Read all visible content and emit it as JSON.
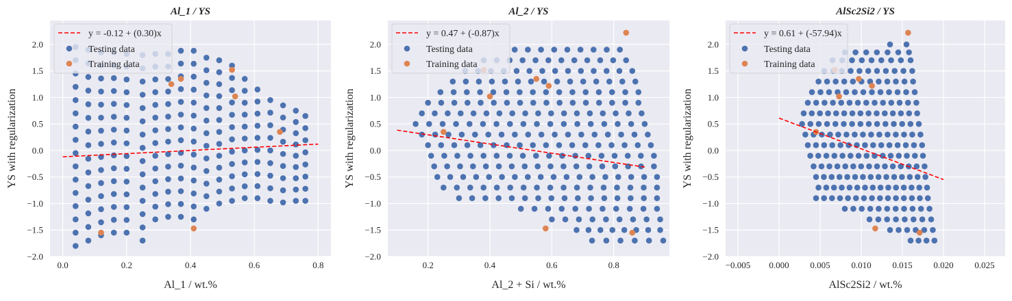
{
  "colors": {
    "axes_bg": "#EAEAF2",
    "grid": "#FFFFFF",
    "testing": "#4C72B0",
    "training": "#DD8452",
    "fit_line": "#FF0000"
  },
  "chart_data": [
    {
      "type": "scatter",
      "title": "Al_1 / YS",
      "xlabel": "Al_1 / wt.%",
      "ylabel": "YS with regularization",
      "xlim": [
        -0.04,
        0.84
      ],
      "ylim": [
        -2.0,
        2.45
      ],
      "xticks": [
        0.0,
        0.2,
        0.4,
        0.6,
        0.8
      ],
      "xtick_labels": [
        "0.0",
        "0.2",
        "0.4",
        "0.6",
        "0.8"
      ],
      "yticks": [
        -2.0,
        -1.5,
        -1.0,
        -0.5,
        0.0,
        0.5,
        1.0,
        1.5,
        2.0
      ],
      "ytick_labels": [
        "−2.0",
        "−1.5",
        "−1.0",
        "−0.5",
        "0.0",
        "0.5",
        "1.0",
        "1.5",
        "2.0"
      ],
      "grid": true,
      "legend_position": "top-left",
      "fit": {
        "label": "y = -0.12 + (0.30)x",
        "intercept": -0.12,
        "slope": 0.3,
        "x_range": [
          0.0,
          0.8
        ]
      },
      "testing_label": "Testing data",
      "training_label": "Training data",
      "testing_columns": [
        {
          "x": 0.04,
          "ymin": -1.8,
          "ymax": 1.95,
          "n": 16
        },
        {
          "x": 0.08,
          "ymin": -1.7,
          "ymax": 1.9,
          "n": 15
        },
        {
          "x": 0.12,
          "ymin": -1.6,
          "ymax": 1.85,
          "n": 15
        },
        {
          "x": 0.16,
          "ymin": -1.55,
          "ymax": 1.85,
          "n": 15
        },
        {
          "x": 0.2,
          "ymin": -1.55,
          "ymax": 1.82,
          "n": 15
        },
        {
          "x": 0.25,
          "ymin": -1.7,
          "ymax": 1.8,
          "n": 15
        },
        {
          "x": 0.29,
          "ymin": -1.3,
          "ymax": 1.82,
          "n": 14
        },
        {
          "x": 0.33,
          "ymin": -1.25,
          "ymax": 1.82,
          "n": 14
        },
        {
          "x": 0.37,
          "ymin": -1.25,
          "ymax": 1.88,
          "n": 14
        },
        {
          "x": 0.41,
          "ymin": -1.3,
          "ymax": 1.88,
          "n": 14
        },
        {
          "x": 0.45,
          "ymin": -1.1,
          "ymax": 1.75,
          "n": 13
        },
        {
          "x": 0.49,
          "ymin": -1.0,
          "ymax": 1.7,
          "n": 13
        },
        {
          "x": 0.53,
          "ymin": -0.95,
          "ymax": 1.6,
          "n": 12
        },
        {
          "x": 0.57,
          "ymin": -0.9,
          "ymax": 1.35,
          "n": 11
        },
        {
          "x": 0.61,
          "ymin": -0.9,
          "ymax": 1.15,
          "n": 10
        },
        {
          "x": 0.65,
          "ymin": -0.95,
          "ymax": 0.95,
          "n": 9
        },
        {
          "x": 0.69,
          "ymin": -0.98,
          "ymax": 0.85,
          "n": 9
        },
        {
          "x": 0.73,
          "ymin": -0.95,
          "ymax": 0.75,
          "n": 9
        },
        {
          "x": 0.76,
          "ymin": -0.95,
          "ymax": 0.65,
          "n": 8
        }
      ],
      "training_points": [
        {
          "x": 0.12,
          "y": -1.55
        },
        {
          "x": 0.37,
          "y": 1.35
        },
        {
          "x": 0.41,
          "y": -1.47
        },
        {
          "x": 0.53,
          "y": 1.52
        },
        {
          "x": 0.54,
          "y": 1.02
        },
        {
          "x": 0.34,
          "y": 1.25
        },
        {
          "x": 0.68,
          "y": 0.35
        }
      ]
    },
    {
      "type": "scatter",
      "title": "Al_2 / YS",
      "xlabel": "Al_2 + Si / wt.%",
      "ylabel": "YS with regularization",
      "xlim": [
        0.07,
        0.98
      ],
      "ylim": [
        -2.0,
        2.45
      ],
      "xticks": [
        0.2,
        0.4,
        0.6,
        0.8
      ],
      "xtick_labels": [
        "0.2",
        "0.4",
        "0.6",
        "0.8"
      ],
      "yticks": [
        -2.0,
        -1.5,
        -1.0,
        -0.5,
        0.0,
        0.5,
        1.0,
        1.5,
        2.0
      ],
      "ytick_labels": [
        "−2.0",
        "−1.5",
        "−1.0",
        "−0.5",
        "0.0",
        "0.5",
        "1.0",
        "1.5",
        "2.0"
      ],
      "grid": true,
      "legend_position": "top-left",
      "fit": {
        "label": "y = 0.47 + (-0.87)x",
        "intercept": 0.47,
        "slope": -0.87,
        "x_range": [
          0.1,
          0.9
        ]
      },
      "testing_label": "Testing data",
      "training_label": "Training data",
      "testing_rows": [
        {
          "y": 1.9,
          "x0": 0.48,
          "x1": 0.82,
          "n": 9
        },
        {
          "y": 1.7,
          "x0": 0.38,
          "x1": 0.84,
          "n": 12
        },
        {
          "y": 1.5,
          "x0": 0.32,
          "x1": 0.86,
          "n": 14
        },
        {
          "y": 1.3,
          "x0": 0.28,
          "x1": 0.87,
          "n": 15
        },
        {
          "y": 1.1,
          "x0": 0.24,
          "x1": 0.88,
          "n": 16
        },
        {
          "y": 0.9,
          "x0": 0.2,
          "x1": 0.88,
          "n": 17
        },
        {
          "y": 0.7,
          "x0": 0.18,
          "x1": 0.89,
          "n": 18
        },
        {
          "y": 0.5,
          "x0": 0.16,
          "x1": 0.9,
          "n": 18
        },
        {
          "y": 0.3,
          "x0": 0.18,
          "x1": 0.91,
          "n": 18
        },
        {
          "y": 0.1,
          "x0": 0.2,
          "x1": 0.92,
          "n": 18
        },
        {
          "y": -0.1,
          "x0": 0.21,
          "x1": 0.93,
          "n": 18
        },
        {
          "y": -0.3,
          "x0": 0.22,
          "x1": 0.93,
          "n": 18
        },
        {
          "y": -0.5,
          "x0": 0.23,
          "x1": 0.94,
          "n": 18
        },
        {
          "y": -0.7,
          "x0": 0.25,
          "x1": 0.94,
          "n": 17
        },
        {
          "y": -0.9,
          "x0": 0.3,
          "x1": 0.94,
          "n": 16
        },
        {
          "y": -1.1,
          "x0": 0.5,
          "x1": 0.94,
          "n": 11
        },
        {
          "y": -1.3,
          "x0": 0.6,
          "x1": 0.95,
          "n": 9
        },
        {
          "y": -1.5,
          "x0": 0.68,
          "x1": 0.95,
          "n": 8
        },
        {
          "y": -1.7,
          "x0": 0.73,
          "x1": 0.96,
          "n": 6
        }
      ],
      "training_points": [
        {
          "x": 0.84,
          "y": 2.22
        },
        {
          "x": 0.55,
          "y": 1.35
        },
        {
          "x": 0.59,
          "y": 1.22
        },
        {
          "x": 0.4,
          "y": 1.02
        },
        {
          "x": 0.25,
          "y": 0.35
        },
        {
          "x": 0.58,
          "y": -1.47
        },
        {
          "x": 0.86,
          "y": -1.55
        },
        {
          "x": 0.38,
          "y": 1.52
        }
      ]
    },
    {
      "type": "scatter",
      "title": "AlSc2Si2 / YS",
      "xlabel": "AlSc2Si2 / wt.%",
      "ylabel": "YS with regularization",
      "xlim": [
        -0.0065,
        0.0275
      ],
      "ylim": [
        -2.0,
        2.45
      ],
      "xticks": [
        -0.005,
        0.0,
        0.005,
        0.01,
        0.015,
        0.02,
        0.025
      ],
      "xtick_labels": [
        "−0.005",
        "0.000",
        "0.005",
        "0.010",
        "0.015",
        "0.020",
        "0.025"
      ],
      "yticks": [
        -2.0,
        -1.5,
        -1.0,
        -0.5,
        0.0,
        0.5,
        1.0,
        1.5,
        2.0
      ],
      "ytick_labels": [
        "−2.0",
        "−1.5",
        "−1.0",
        "−0.5",
        "0.0",
        "0.5",
        "1.0",
        "1.5",
        "2.0"
      ],
      "grid": true,
      "legend_position": "top-left",
      "fit": {
        "label": "y = 0.61 + (-57.94)x",
        "intercept": 0.61,
        "slope": -57.94,
        "x_range": [
          0.0,
          0.02
        ]
      },
      "testing_label": "Testing data",
      "training_label": "Training data",
      "testing_rows": [
        {
          "y": 2.0,
          "x0": 0.0135,
          "x1": 0.0155,
          "n": 2
        },
        {
          "y": 1.85,
          "x0": 0.008,
          "x1": 0.0158,
          "n": 7
        },
        {
          "y": 1.7,
          "x0": 0.0065,
          "x1": 0.016,
          "n": 9
        },
        {
          "y": 1.5,
          "x0": 0.0055,
          "x1": 0.0162,
          "n": 11
        },
        {
          "y": 1.3,
          "x0": 0.0048,
          "x1": 0.0163,
          "n": 12
        },
        {
          "y": 1.1,
          "x0": 0.004,
          "x1": 0.0165,
          "n": 13
        },
        {
          "y": 0.9,
          "x0": 0.0035,
          "x1": 0.0167,
          "n": 14
        },
        {
          "y": 0.7,
          "x0": 0.003,
          "x1": 0.0168,
          "n": 15
        },
        {
          "y": 0.5,
          "x0": 0.0028,
          "x1": 0.017,
          "n": 15
        },
        {
          "y": 0.3,
          "x0": 0.0032,
          "x1": 0.0172,
          "n": 15
        },
        {
          "y": 0.1,
          "x0": 0.0035,
          "x1": 0.0174,
          "n": 15
        },
        {
          "y": -0.1,
          "x0": 0.0038,
          "x1": 0.0175,
          "n": 15
        },
        {
          "y": -0.3,
          "x0": 0.0042,
          "x1": 0.0177,
          "n": 15
        },
        {
          "y": -0.5,
          "x0": 0.0045,
          "x1": 0.0178,
          "n": 15
        },
        {
          "y": -0.7,
          "x0": 0.0048,
          "x1": 0.018,
          "n": 15
        },
        {
          "y": -0.9,
          "x0": 0.0045,
          "x1": 0.0181,
          "n": 15
        },
        {
          "y": -1.1,
          "x0": 0.008,
          "x1": 0.0183,
          "n": 11
        },
        {
          "y": -1.3,
          "x0": 0.011,
          "x1": 0.0185,
          "n": 8
        },
        {
          "y": -1.5,
          "x0": 0.0135,
          "x1": 0.0187,
          "n": 6
        },
        {
          "y": -1.7,
          "x0": 0.016,
          "x1": 0.0189,
          "n": 4
        }
      ],
      "training_points": [
        {
          "x": 0.0157,
          "y": 2.22
        },
        {
          "x": 0.0097,
          "y": 1.35
        },
        {
          "x": 0.0113,
          "y": 1.22
        },
        {
          "x": 0.0073,
          "y": 1.02
        },
        {
          "x": 0.0045,
          "y": 0.35
        },
        {
          "x": 0.0117,
          "y": -1.47
        },
        {
          "x": 0.0171,
          "y": -1.55
        },
        {
          "x": 0.0068,
          "y": 1.52
        }
      ]
    }
  ]
}
